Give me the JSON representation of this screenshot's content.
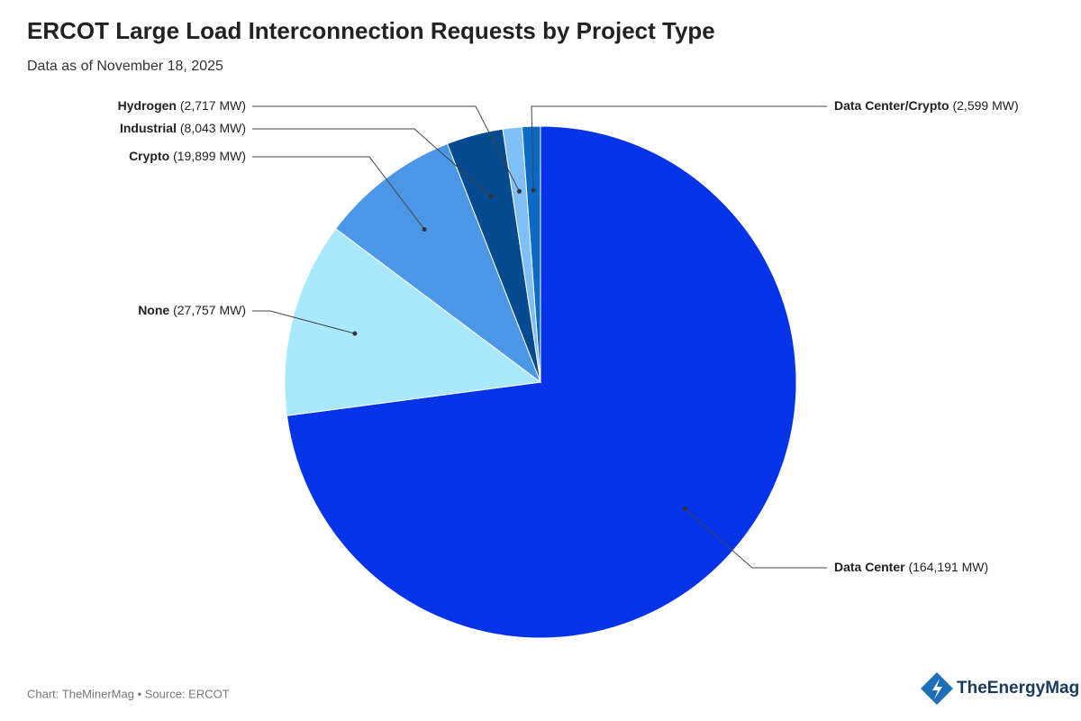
{
  "chart_data": {
    "type": "pie",
    "title": "ERCOT Large Load Interconnection Requests by Project Type",
    "subtitle": "Data as of November 18, 2025",
    "categories": [
      "Data Center",
      "None",
      "Crypto",
      "Industrial",
      "Hydrogen",
      "Data Center/Crypto"
    ],
    "values": [
      164191,
      27757,
      19899,
      8043,
      2717,
      2599
    ],
    "value_labels": [
      "(164,191 MW)",
      "(27,757 MW)",
      "(19,899 MW)",
      "(8,043 MW)",
      "(2,717 MW)",
      "(2,599 MW)"
    ],
    "colors": [
      "#0433e8",
      "#a9e9fd",
      "#4b97e6",
      "#064a8f",
      "#80bff6",
      "#0b6ac5"
    ]
  },
  "footer": "Chart: TheMinerMag • Source: ERCOT",
  "logo": "TheEnergyMag"
}
